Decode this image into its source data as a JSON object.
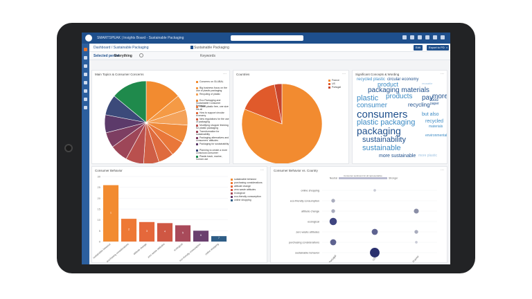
{
  "colors": {
    "brand_blue": "#1e4f8c",
    "nav_blue": "#2c5f9e",
    "orange": "#f28b30",
    "tablet": "#222325"
  },
  "topbar": {
    "title": "SMARTSPEAK | Insights Board - Sustainable Packaging",
    "icons": [
      "help-icon",
      "bell-icon",
      "user-icon",
      "grid-icon",
      "settings-icon",
      "share-icon"
    ]
  },
  "breadcrumb": {
    "project": "Dashboard  /  Sustainable Packaging",
    "document": "Sustainable Packaging",
    "edit_button": "Edit",
    "export_button": "Export to PDF"
  },
  "filters": {
    "period_label": "Selected period",
    "period_value": "Everything",
    "keywords": "Keywords"
  },
  "panels": {
    "topics_title": "Main Topics & Consumer Concerns",
    "countries_title": "Countries",
    "wordcloud_title": "Significant Concepts & Wording",
    "behavior_title": "Consumer Behavior",
    "behavior_country_title": "Consumer Behavior vs. Country",
    "menu_glyph": "⋯"
  },
  "chart_data": [
    {
      "type": "pie",
      "title": "Main Topics & Consumer Concerns",
      "labels": [
        "Concerns on GLUBAL",
        "Big business focus on the use of plastic packaging",
        "Recycling of plastic",
        "Eco-Packaging and Sustainable Consumer Behavior",
        "Glass plastic free, one size fits all",
        "How to support circular economy",
        "New regulations for the use of packaging",
        "Modifying shopper thinking for plastic packaging",
        "Transformation for sustainability",
        "Packaging alternatives and consumers' attitudes",
        "Packaging for sustainability",
        "Planning to create a more conscious consumer",
        "Plastic trash, marine, human use"
      ],
      "values": [
        14,
        6,
        6,
        7,
        6,
        6,
        6,
        7,
        7,
        6,
        7,
        8,
        14
      ],
      "colors": [
        "#f28b30",
        "#f59a45",
        "#f4a259",
        "#ef8a3a",
        "#e9773a",
        "#df6b3e",
        "#cf5e45",
        "#b9504e",
        "#9d4658",
        "#7d3e62",
        "#5c3a6a",
        "#3c4a7a",
        "#1f8a4c"
      ]
    },
    {
      "type": "pie",
      "title": "Countries",
      "labels": [
        "France",
        "US",
        "Portugal"
      ],
      "values": [
        81,
        16,
        3
      ],
      "colors": [
        "#f28b30",
        "#e05a2b",
        "#c7442c"
      ]
    },
    {
      "type": "bar",
      "title": "Consumer Behavior",
      "categories": [
        "sustainable behavior",
        "purchasing considerations",
        "attitude change",
        "zero waste attitudes",
        "ecological",
        "eco-friendly consumption",
        "online shopping"
      ],
      "values": [
        26,
        10.5,
        9,
        8.5,
        7.5,
        5,
        2.5
      ],
      "ylim": [
        0,
        30
      ],
      "yticks": [
        "0",
        "5",
        "10",
        "15",
        "20",
        "25",
        "30"
      ],
      "bar_value_labels": [
        "1",
        "2",
        "3",
        "4",
        "5",
        "6",
        "7"
      ],
      "colors": [
        "#f28b30",
        "#ee7936",
        "#e5683b",
        "#cf5743",
        "#a84a5a",
        "#6a3f6e",
        "#2e5d86"
      ]
    },
    {
      "type": "scatter",
      "title": "Consumer Behavior vs. Country",
      "legend": {
        "low": "Neutral",
        "mid": "Consumer sentiment for all representative",
        "high": "Stronger"
      },
      "y_categories": [
        "online shopping",
        "eco-friendly consumption",
        "attitude change",
        "ecological",
        "zero waste attitudes",
        "purchasing considerations",
        "sustainable behavior"
      ],
      "x_categories": [
        "Portugal",
        "US",
        "France"
      ],
      "points": [
        {
          "x": "US",
          "y": "online shopping",
          "size": 1
        },
        {
          "x": "Portugal",
          "y": "eco-friendly consumption",
          "size": 2
        },
        {
          "x": "Portugal",
          "y": "attitude change",
          "size": 2
        },
        {
          "x": "France",
          "y": "attitude change",
          "size": 3
        },
        {
          "x": "Portugal",
          "y": "ecological",
          "size": 5
        },
        {
          "x": "US",
          "y": "zero waste attitudes",
          "size": 4
        },
        {
          "x": "France",
          "y": "zero waste attitudes",
          "size": 2
        },
        {
          "x": "Portugal",
          "y": "purchasing considerations",
          "size": 4
        },
        {
          "x": "France",
          "y": "purchasing considerations",
          "size": 1
        },
        {
          "x": "US",
          "y": "sustainable behavior",
          "size": 7
        }
      ]
    }
  ],
  "wordcloud": [
    {
      "text": "recycled plastic",
      "color": "#3b8ac4",
      "size": 6
    },
    {
      "text": "circular economy",
      "color": "#1e4f8c",
      "size": 6
    },
    {
      "text": "product",
      "color": "#3b8ac4",
      "size": 9
    },
    {
      "text": "reusable",
      "color": "#9fc3e2",
      "size": 4
    },
    {
      "text": "packaging materials",
      "color": "#1e4f8c",
      "size": 10
    },
    {
      "text": "plastic",
      "color": "#3b8ac4",
      "size": 11
    },
    {
      "text": "products",
      "color": "#3b8ac4",
      "size": 10
    },
    {
      "text": "pay",
      "color": "#1e4f8c",
      "size": 10
    },
    {
      "text": "more",
      "color": "#1e4f8c",
      "size": 10
    },
    {
      "text": "food",
      "color": "#1e4f8c",
      "size": 6
    },
    {
      "text": "paper",
      "color": "#1e4f8c",
      "size": 5
    },
    {
      "text": "consumer",
      "color": "#3b8ac4",
      "size": 10
    },
    {
      "text": "recycling",
      "color": "#1e4f8c",
      "size": 8
    },
    {
      "text": "consumers",
      "color": "#1e4f8c",
      "size": 15
    },
    {
      "text": "but also",
      "color": "#3b8ac4",
      "size": 7
    },
    {
      "text": "plastic packaging",
      "color": "#3b8ac4",
      "size": 11
    },
    {
      "text": "recycled",
      "color": "#3b8ac4",
      "size": 7
    },
    {
      "text": "packaging",
      "color": "#1e4f8c",
      "size": 14
    },
    {
      "text": "materials",
      "color": "#3b8ac4",
      "size": 5
    },
    {
      "text": "sustainability",
      "color": "#1e4f8c",
      "size": 11
    },
    {
      "text": "environmental",
      "color": "#3b8ac4",
      "size": 5
    },
    {
      "text": "sustainable",
      "color": "#3b8ac4",
      "size": 11
    },
    {
      "text": "more sustainable",
      "color": "#1e4f8c",
      "size": 7
    },
    {
      "text": "more plastic",
      "color": "#9fc3e2",
      "size": 5
    }
  ]
}
